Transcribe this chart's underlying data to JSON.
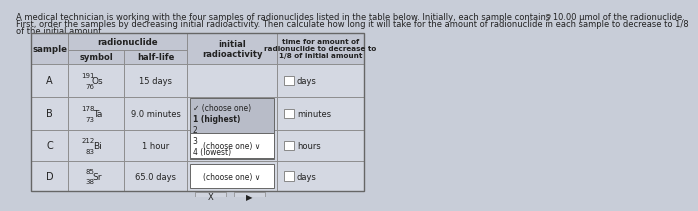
{
  "title_line1": "A medical technician is working with the four samples of radionuclides listed in the table below. Initially, each sample contains 10.00 μmol of the radionuclide.",
  "title_line2": "First, order the samples by decreasing initial radioactivity. Then calculate how long it will take for the amount of radionuclide in each sample to decrease to 1/8",
  "title_line3": "of the initial amount.",
  "bg_color": "#c8cdd8",
  "table_bg_light": "#d8dce6",
  "header_bg": "#c2c6d2",
  "cell_bg": "#d4d8e2",
  "dropdown_open_bg": "#b8bcc8",
  "dropdown_closed_bg": "#ffffff",
  "input_box_bg": "#ffffff",
  "samples": [
    "A",
    "B",
    "C",
    "D"
  ],
  "symbols_top": [
    "191",
    "178",
    "212",
    "85"
  ],
  "symbols_mid": [
    "Os",
    "Ta",
    "Bi",
    "Sr"
  ],
  "symbols_bot": [
    "76",
    "73",
    "83",
    "38"
  ],
  "half_lives": [
    "15 days",
    "9.0 minutes",
    "1 hour",
    "65.0 days"
  ],
  "time_units": [
    "days",
    "minutes",
    "hours",
    "days"
  ],
  "dropdown_A_line1": "✓ (choose one)",
  "dropdown_A_line2": "1 (highest)",
  "dropdown_A_line3": "2",
  "dropdown_A_line4": "3",
  "dropdown_A_line5": "4 (lowest)",
  "dropdown_closed_text": "(choose one) ∨",
  "col_header_sample": "sample",
  "col_header_radionuclide": "radionuclide",
  "col_subheader_symbol": "symbol",
  "col_subheader_halflife": "half-life",
  "col_header_radioactivity": "initial\nradioactivity",
  "col_header_time": "time for amount of\nradionuclide to decrease to\n1/8 of initial amount",
  "text_color_dark": "#222222",
  "edge_color": "#888888",
  "edge_color_outer": "#666666"
}
